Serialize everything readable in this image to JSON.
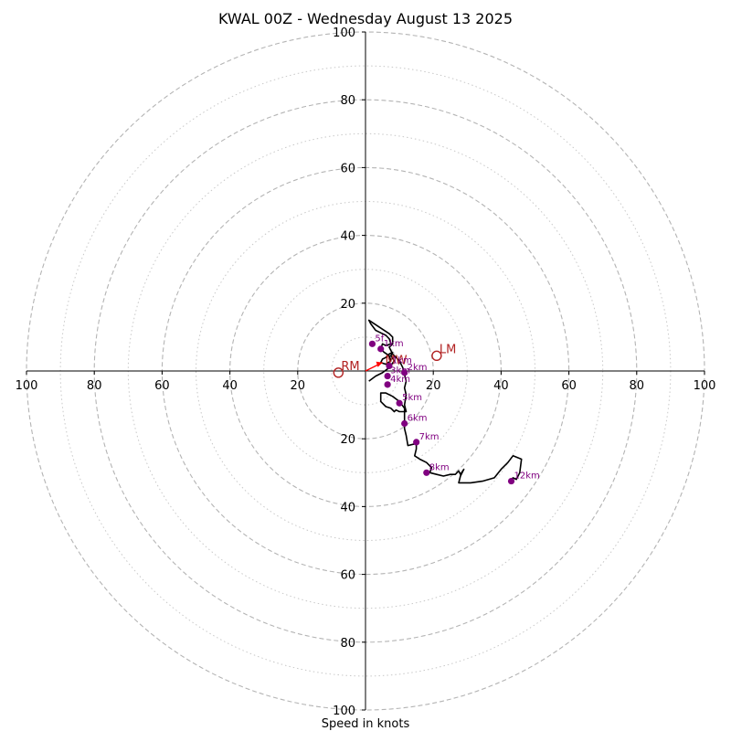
{
  "chart_data": {
    "type": "scatter",
    "title": "KWAL 00Z - Wednesday August 13 2025",
    "xlabel": "Speed in knots",
    "ylabel": "",
    "xlim": [
      -100,
      100
    ],
    "ylim": [
      -100,
      100
    ],
    "grid": "polar rings",
    "ring_major": [
      20,
      40,
      60,
      80,
      100
    ],
    "ring_minor": [
      10,
      30,
      50,
      70,
      90
    ],
    "x_ticks": [
      {
        "value": -100,
        "label": "100"
      },
      {
        "value": -80,
        "label": "80"
      },
      {
        "value": -60,
        "label": "60"
      },
      {
        "value": -40,
        "label": "40"
      },
      {
        "value": -20,
        "label": "20"
      },
      {
        "value": 20,
        "label": "20"
      },
      {
        "value": 40,
        "label": "40"
      },
      {
        "value": 60,
        "label": "60"
      },
      {
        "value": 80,
        "label": "80"
      },
      {
        "value": 100,
        "label": "100"
      }
    ],
    "y_ticks": [
      {
        "value": 100,
        "label": "100"
      },
      {
        "value": 80,
        "label": "80"
      },
      {
        "value": 60,
        "label": "60"
      },
      {
        "value": 40,
        "label": "40"
      },
      {
        "value": 20,
        "label": "20"
      },
      {
        "value": -20,
        "label": "20"
      },
      {
        "value": -40,
        "label": "40"
      },
      {
        "value": -60,
        "label": "60"
      },
      {
        "value": -80,
        "label": "80"
      },
      {
        "value": -100,
        "label": "100"
      }
    ],
    "hodograph": {
      "color": "#000000",
      "points": [
        [
          1,
          -3
        ],
        [
          3,
          -1.5
        ],
        [
          5,
          -0.5
        ],
        [
          7,
          1
        ],
        [
          8.5,
          3
        ],
        [
          7.5,
          4.5
        ],
        [
          8,
          5.5
        ],
        [
          7,
          5
        ],
        [
          6,
          4
        ],
        [
          5,
          3.5
        ],
        [
          4.5,
          2.5
        ],
        [
          6,
          2
        ],
        [
          7.5,
          3
        ],
        [
          7,
          4.5
        ],
        [
          5.5,
          5.5
        ],
        [
          4.5,
          6.5
        ],
        [
          5,
          8
        ],
        [
          6,
          7.5
        ],
        [
          7.5,
          8
        ],
        [
          7,
          9.5
        ],
        [
          6,
          10.5
        ],
        [
          4,
          11.5
        ],
        [
          3,
          12
        ],
        [
          1.5,
          14
        ],
        [
          1,
          15
        ],
        [
          7,
          11
        ],
        [
          8,
          10
        ],
        [
          8,
          8
        ],
        [
          7,
          7
        ],
        [
          8,
          5
        ],
        [
          10,
          3
        ],
        [
          11,
          1
        ],
        [
          11.5,
          -1
        ],
        [
          12,
          -3
        ],
        [
          11.5,
          -5
        ],
        [
          12,
          -7
        ],
        [
          11.5,
          -10
        ],
        [
          12,
          -12
        ],
        [
          10,
          -12
        ],
        [
          9,
          -11.5
        ],
        [
          8.5,
          -12
        ],
        [
          7.5,
          -11
        ],
        [
          6,
          -10.5
        ],
        [
          4.5,
          -9
        ],
        [
          4.5,
          -6.5
        ],
        [
          6,
          -6.5
        ],
        [
          8,
          -7.5
        ],
        [
          10,
          -9
        ],
        [
          11.5,
          -11
        ],
        [
          11.5,
          -14
        ],
        [
          11.5,
          -17
        ],
        [
          12,
          -19
        ],
        [
          12.5,
          -22
        ],
        [
          14.5,
          -21.5
        ],
        [
          15,
          -21
        ],
        [
          15,
          -23
        ],
        [
          14.5,
          -25
        ],
        [
          16,
          -26
        ],
        [
          18,
          -27
        ],
        [
          19.5,
          -28.5
        ],
        [
          19,
          -30
        ],
        [
          21,
          -30.5
        ],
        [
          23,
          -31
        ],
        [
          25,
          -30.5
        ],
        [
          26.5,
          -30.5
        ],
        [
          27.5,
          -29.5
        ],
        [
          28,
          -30.5
        ],
        [
          29,
          -29
        ],
        [
          28,
          -31
        ],
        [
          27.5,
          -33
        ],
        [
          31,
          -33
        ],
        [
          34.5,
          -32.5
        ],
        [
          38,
          -31.5
        ],
        [
          40,
          -29
        ],
        [
          42,
          -27
        ],
        [
          43.5,
          -25
        ],
        [
          46,
          -26
        ],
        [
          45.5,
          -30
        ],
        [
          44.5,
          -32
        ],
        [
          43.5,
          -31.5
        ],
        [
          43,
          -32
        ]
      ]
    },
    "height_markers": {
      "color": "#800080",
      "points": [
        {
          "label": "1km",
          "x": 7,
          "y": 1.5
        },
        {
          "label": "2km",
          "x": 11.5,
          "y": -0.5
        },
        {
          "label": "3km",
          "x": 6.5,
          "y": -1.5
        },
        {
          "label": "4km",
          "x": 6.5,
          "y": -4
        },
        {
          "label": "5km",
          "x": 10,
          "y": -9.5
        },
        {
          "label": "6km",
          "x": 11.5,
          "y": -15.5
        },
        {
          "label": "7km",
          "x": 15,
          "y": -21
        },
        {
          "label": "8km",
          "x": 18,
          "y": -30
        },
        {
          "label": "5f",
          "x": 2,
          "y": 8
        },
        {
          "label": "1km",
          "x": 4.5,
          "y": 6.5
        },
        {
          "label": "12km",
          "x": 43,
          "y": -32.5
        }
      ]
    },
    "storm_motion": {
      "color": "#b22222",
      "mean_wind": {
        "label": "MW",
        "x": 5,
        "y": 2.5
      },
      "right_mover": {
        "label": "RM",
        "x": -8,
        "y": -0.5
      },
      "left_mover": {
        "label": "LM",
        "x": 21,
        "y": 4.5
      },
      "arrow_color": "#ff0000",
      "arrow_to": {
        "x": 5,
        "y": 2.5
      }
    }
  }
}
